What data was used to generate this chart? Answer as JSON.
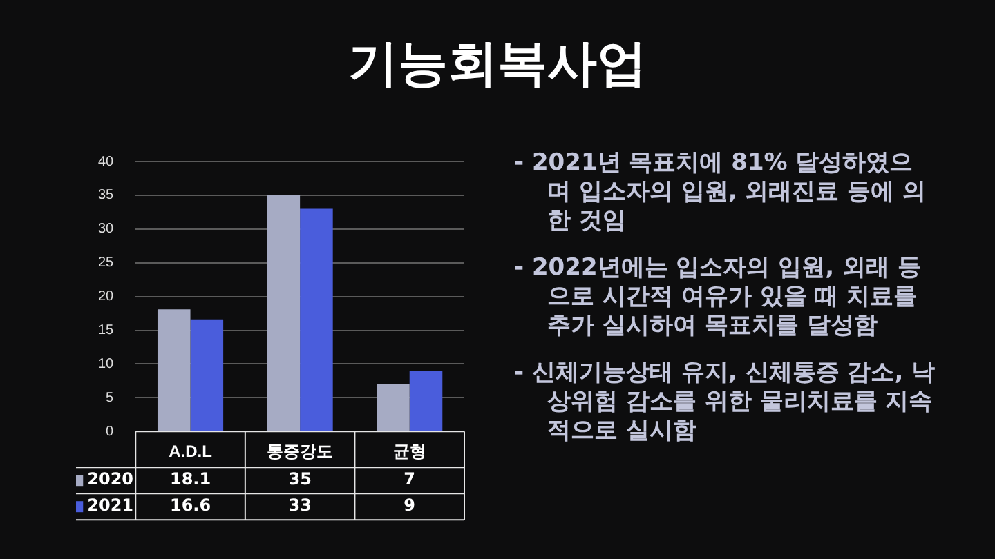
{
  "chart_data": {
    "type": "bar",
    "title": "기능회복사업",
    "categories": [
      "A.D.L",
      "통증강도",
      "균형"
    ],
    "series": [
      {
        "name": "2020",
        "color": "#a6abc4",
        "values": [
          18.1,
          35,
          7
        ]
      },
      {
        "name": "2021",
        "color": "#4a5ddc",
        "values": [
          16.6,
          33,
          9
        ]
      }
    ],
    "ylim": [
      0,
      40
    ],
    "yticks": [
      0,
      5,
      10,
      15,
      20,
      25,
      30,
      35,
      40
    ],
    "grid": "y",
    "data_labels": true,
    "legend": "bottom left",
    "annotations": [
      "- 2021년 목표치에 81% 달성하였으며  입소자의 입원, 외래진료 등에 의한 것임",
      "- 2022년에는 입소자의 입원, 외래 등으로 시간적 여유가 있을 때 치료를 추가 실시하여 목표치를 달성함",
      "- 신체기능상태 유지, 신체통증 감소, 낙상위험 감소를 위한 물리치료를 지속적으로 실시함"
    ]
  }
}
